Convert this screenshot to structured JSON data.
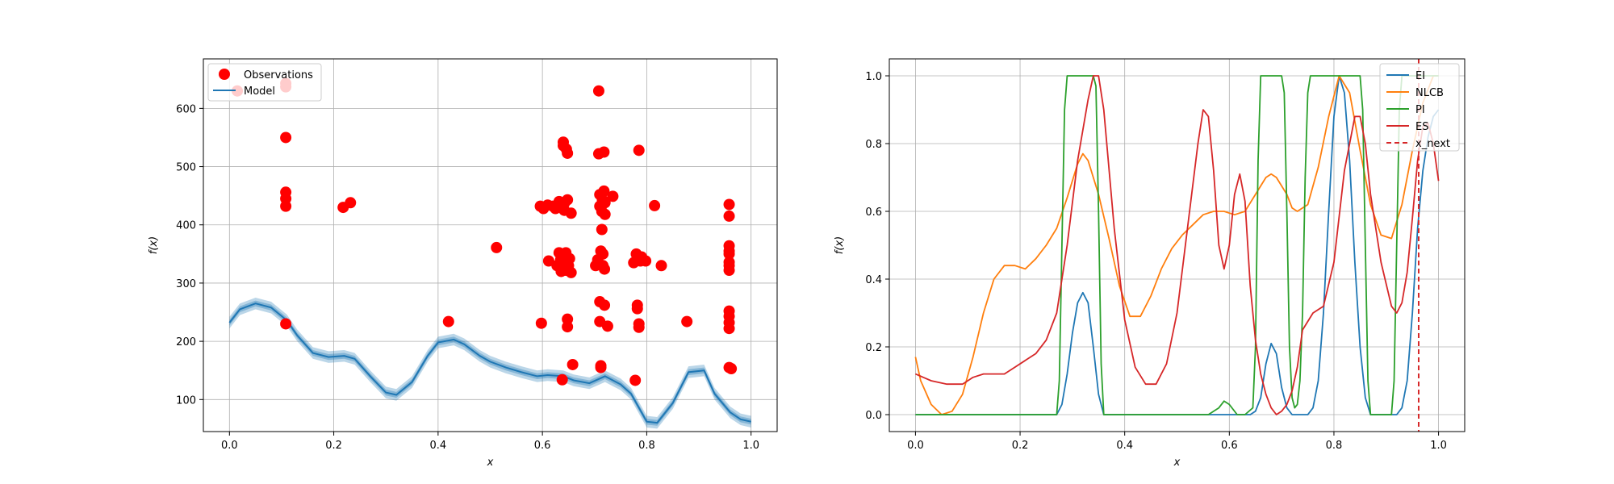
{
  "chart_data": [
    {
      "type": "scatter",
      "xlabel": "x",
      "ylabel": "f(x)",
      "xlim": [
        -0.05,
        1.05
      ],
      "ylim": [
        45,
        685
      ],
      "xticks": [
        0.0,
        0.2,
        0.4,
        0.6,
        0.8,
        1.0
      ],
      "xtick_labels": [
        "0.0",
        "0.2",
        "0.4",
        "0.6",
        "0.8",
        "1.0"
      ],
      "yticks": [
        100,
        200,
        300,
        400,
        500,
        600
      ],
      "ytick_labels": [
        "100",
        "200",
        "300",
        "400",
        "500",
        "600"
      ],
      "grid": true,
      "legend_position": "upper-left",
      "legend": [
        "Observations",
        "Model"
      ],
      "colors": {
        "observations": "#ff0000",
        "model": "#1f77b4",
        "band": "#1f77b4"
      },
      "observations": [
        [
          0.015,
          630
        ],
        [
          0.108,
          643
        ],
        [
          0.108,
          637
        ],
        [
          0.108,
          550
        ],
        [
          0.108,
          456
        ],
        [
          0.108,
          445
        ],
        [
          0.108,
          432
        ],
        [
          0.108,
          230
        ],
        [
          0.218,
          430
        ],
        [
          0.232,
          438
        ],
        [
          0.42,
          234
        ],
        [
          0.512,
          361
        ],
        [
          0.596,
          432
        ],
        [
          0.598,
          231
        ],
        [
          0.602,
          428
        ],
        [
          0.61,
          434
        ],
        [
          0.612,
          338
        ],
        [
          0.62,
          432
        ],
        [
          0.625,
          428
        ],
        [
          0.628,
          330
        ],
        [
          0.632,
          440
        ],
        [
          0.632,
          352
        ],
        [
          0.635,
          340
        ],
        [
          0.636,
          320
        ],
        [
          0.638,
          134
        ],
        [
          0.64,
          542
        ],
        [
          0.64,
          536
        ],
        [
          0.642,
          437
        ],
        [
          0.642,
          425
        ],
        [
          0.643,
          335
        ],
        [
          0.645,
          352
        ],
        [
          0.645,
          322
        ],
        [
          0.646,
          530
        ],
        [
          0.648,
          523
        ],
        [
          0.648,
          443
        ],
        [
          0.648,
          238
        ],
        [
          0.648,
          225
        ],
        [
          0.65,
          330
        ],
        [
          0.652,
          342
        ],
        [
          0.655,
          420
        ],
        [
          0.655,
          318
        ],
        [
          0.658,
          160
        ],
        [
          0.702,
          330
        ],
        [
          0.706,
          340
        ],
        [
          0.708,
          630
        ],
        [
          0.708,
          522
        ],
        [
          0.71,
          452
        ],
        [
          0.71,
          432
        ],
        [
          0.71,
          268
        ],
        [
          0.71,
          234
        ],
        [
          0.712,
          355
        ],
        [
          0.712,
          158
        ],
        [
          0.712,
          155
        ],
        [
          0.714,
          423
        ],
        [
          0.714,
          392
        ],
        [
          0.715,
          443
        ],
        [
          0.716,
          350
        ],
        [
          0.716,
          330
        ],
        [
          0.718,
          458
        ],
        [
          0.718,
          525
        ],
        [
          0.719,
          262
        ],
        [
          0.719,
          324
        ],
        [
          0.72,
          418
        ],
        [
          0.72,
          438
        ],
        [
          0.725,
          226
        ],
        [
          0.735,
          449
        ],
        [
          0.775,
          335
        ],
        [
          0.778,
          133
        ],
        [
          0.78,
          350
        ],
        [
          0.782,
          342
        ],
        [
          0.782,
          262
        ],
        [
          0.782,
          256
        ],
        [
          0.785,
          528
        ],
        [
          0.785,
          230
        ],
        [
          0.785,
          224
        ],
        [
          0.788,
          338
        ],
        [
          0.79,
          345
        ],
        [
          0.798,
          338
        ],
        [
          0.815,
          433
        ],
        [
          0.828,
          330
        ],
        [
          0.877,
          234
        ],
        [
          0.958,
          435
        ],
        [
          0.958,
          415
        ],
        [
          0.958,
          364
        ],
        [
          0.958,
          355
        ],
        [
          0.958,
          350
        ],
        [
          0.958,
          336
        ],
        [
          0.958,
          330
        ],
        [
          0.958,
          322
        ],
        [
          0.958,
          252
        ],
        [
          0.958,
          243
        ],
        [
          0.958,
          232
        ],
        [
          0.958,
          222
        ],
        [
          0.958,
          155
        ],
        [
          0.962,
          153
        ]
      ],
      "model": {
        "x": [
          0.0,
          0.02,
          0.05,
          0.08,
          0.11,
          0.13,
          0.16,
          0.19,
          0.22,
          0.24,
          0.27,
          0.3,
          0.32,
          0.35,
          0.38,
          0.4,
          0.43,
          0.45,
          0.48,
          0.5,
          0.53,
          0.56,
          0.59,
          0.61,
          0.64,
          0.66,
          0.69,
          0.72,
          0.75,
          0.77,
          0.8,
          0.82,
          0.85,
          0.88,
          0.91,
          0.93,
          0.96,
          0.98,
          1.0
        ],
        "y": [
          232,
          255,
          265,
          258,
          236,
          210,
          180,
          173,
          175,
          170,
          140,
          112,
          108,
          130,
          175,
          198,
          203,
          195,
          175,
          165,
          155,
          147,
          140,
          142,
          140,
          133,
          128,
          140,
          126,
          110,
          62,
          60,
          94,
          147,
          150,
          110,
          78,
          66,
          62
        ],
        "band": 10
      }
    },
    {
      "type": "line",
      "xlabel": "x",
      "ylabel": "f(x)",
      "xlim": [
        -0.05,
        1.05
      ],
      "ylim": [
        -0.05,
        1.05
      ],
      "xticks": [
        0.0,
        0.2,
        0.4,
        0.6,
        0.8,
        1.0
      ],
      "xtick_labels": [
        "0.0",
        "0.2",
        "0.4",
        "0.6",
        "0.8",
        "1.0"
      ],
      "yticks": [
        0.0,
        0.2,
        0.4,
        0.6,
        0.8,
        1.0
      ],
      "ytick_labels": [
        "0.0",
        "0.2",
        "0.4",
        "0.6",
        "0.8",
        "1.0"
      ],
      "grid": true,
      "legend_position": "upper-right",
      "x_next": 0.962,
      "series": [
        {
          "name": "EI",
          "color": "#1f77b4",
          "x": [
            0.0,
            0.27,
            0.28,
            0.29,
            0.3,
            0.31,
            0.32,
            0.33,
            0.34,
            0.35,
            0.36,
            0.63,
            0.64,
            0.65,
            0.66,
            0.67,
            0.68,
            0.69,
            0.7,
            0.71,
            0.72,
            0.73,
            0.74,
            0.75,
            0.76,
            0.77,
            0.78,
            0.79,
            0.8,
            0.81,
            0.82,
            0.83,
            0.84,
            0.85,
            0.86,
            0.87,
            0.88,
            0.91,
            0.92,
            0.93,
            0.94,
            0.95,
            0.96,
            0.97,
            0.98,
            0.99,
            1.0
          ],
          "y": [
            0.0,
            0.0,
            0.03,
            0.12,
            0.24,
            0.33,
            0.36,
            0.33,
            0.2,
            0.06,
            0.0,
            0.0,
            0.0,
            0.01,
            0.05,
            0.15,
            0.21,
            0.18,
            0.08,
            0.02,
            0.0,
            0.0,
            0.0,
            0.0,
            0.02,
            0.1,
            0.3,
            0.6,
            0.88,
            1.0,
            0.95,
            0.75,
            0.45,
            0.2,
            0.05,
            0.0,
            0.0,
            0.0,
            0.0,
            0.02,
            0.1,
            0.3,
            0.55,
            0.72,
            0.82,
            0.88,
            0.9
          ]
        },
        {
          "name": "NLCB",
          "color": "#ff7f0e",
          "x": [
            0.0,
            0.01,
            0.03,
            0.05,
            0.07,
            0.09,
            0.11,
            0.13,
            0.15,
            0.17,
            0.19,
            0.21,
            0.23,
            0.25,
            0.27,
            0.29,
            0.31,
            0.32,
            0.33,
            0.35,
            0.37,
            0.39,
            0.41,
            0.43,
            0.45,
            0.47,
            0.49,
            0.51,
            0.53,
            0.55,
            0.57,
            0.59,
            0.61,
            0.63,
            0.65,
            0.67,
            0.68,
            0.69,
            0.71,
            0.72,
            0.73,
            0.75,
            0.77,
            0.79,
            0.81,
            0.83,
            0.85,
            0.87,
            0.89,
            0.91,
            0.93,
            0.95,
            0.97,
            0.99,
            1.0
          ],
          "y": [
            0.17,
            0.1,
            0.03,
            0.0,
            0.01,
            0.06,
            0.17,
            0.3,
            0.4,
            0.44,
            0.44,
            0.43,
            0.46,
            0.5,
            0.55,
            0.64,
            0.74,
            0.77,
            0.75,
            0.65,
            0.52,
            0.38,
            0.29,
            0.29,
            0.35,
            0.43,
            0.49,
            0.53,
            0.56,
            0.59,
            0.6,
            0.6,
            0.59,
            0.6,
            0.65,
            0.7,
            0.71,
            0.7,
            0.65,
            0.61,
            0.6,
            0.62,
            0.73,
            0.88,
            1.0,
            0.95,
            0.78,
            0.62,
            0.53,
            0.52,
            0.62,
            0.78,
            0.92,
            1.0,
            1.0
          ]
        },
        {
          "name": "PI",
          "color": "#2ca02c",
          "x": [
            0.0,
            0.27,
            0.275,
            0.28,
            0.285,
            0.29,
            0.3,
            0.34,
            0.345,
            0.35,
            0.355,
            0.36,
            0.56,
            0.58,
            0.59,
            0.6,
            0.615,
            0.63,
            0.645,
            0.65,
            0.655,
            0.66,
            0.665,
            0.67,
            0.7,
            0.705,
            0.71,
            0.715,
            0.72,
            0.725,
            0.73,
            0.735,
            0.74,
            0.745,
            0.75,
            0.755,
            0.76,
            0.765,
            0.77,
            0.85,
            0.855,
            0.86,
            0.865,
            0.87,
            0.91,
            0.915,
            0.92,
            0.925,
            0.93,
            1.0
          ],
          "y": [
            0.0,
            0.0,
            0.1,
            0.5,
            0.9,
            1.0,
            1.0,
            1.0,
            0.97,
            0.6,
            0.15,
            0.0,
            0.0,
            0.02,
            0.04,
            0.03,
            0.0,
            0.0,
            0.02,
            0.2,
            0.75,
            1.0,
            1.0,
            1.0,
            1.0,
            0.95,
            0.6,
            0.2,
            0.05,
            0.02,
            0.03,
            0.1,
            0.3,
            0.7,
            0.95,
            1.0,
            1.0,
            1.0,
            1.0,
            1.0,
            0.9,
            0.5,
            0.1,
            0.0,
            0.0,
            0.1,
            0.5,
            0.9,
            1.0,
            1.0
          ]
        },
        {
          "name": "ES",
          "color": "#d62728",
          "x": [
            0.0,
            0.03,
            0.06,
            0.09,
            0.11,
            0.13,
            0.15,
            0.17,
            0.19,
            0.21,
            0.23,
            0.25,
            0.27,
            0.29,
            0.31,
            0.33,
            0.34,
            0.35,
            0.36,
            0.38,
            0.4,
            0.42,
            0.44,
            0.46,
            0.48,
            0.5,
            0.52,
            0.54,
            0.55,
            0.56,
            0.57,
            0.58,
            0.59,
            0.6,
            0.61,
            0.62,
            0.63,
            0.64,
            0.65,
            0.66,
            0.67,
            0.68,
            0.69,
            0.7,
            0.71,
            0.72,
            0.73,
            0.74,
            0.76,
            0.78,
            0.8,
            0.82,
            0.84,
            0.85,
            0.86,
            0.87,
            0.89,
            0.91,
            0.92,
            0.93,
            0.94,
            0.95,
            0.96,
            0.97,
            0.98,
            0.99,
            1.0
          ],
          "y": [
            0.12,
            0.1,
            0.09,
            0.09,
            0.11,
            0.12,
            0.12,
            0.12,
            0.14,
            0.16,
            0.18,
            0.22,
            0.3,
            0.5,
            0.75,
            0.93,
            1.0,
            1.0,
            0.9,
            0.55,
            0.28,
            0.14,
            0.09,
            0.09,
            0.15,
            0.3,
            0.55,
            0.8,
            0.9,
            0.88,
            0.72,
            0.5,
            0.43,
            0.5,
            0.65,
            0.71,
            0.63,
            0.38,
            0.22,
            0.12,
            0.06,
            0.02,
            0.0,
            0.01,
            0.03,
            0.07,
            0.14,
            0.25,
            0.3,
            0.32,
            0.45,
            0.72,
            0.88,
            0.88,
            0.8,
            0.65,
            0.45,
            0.32,
            0.3,
            0.33,
            0.42,
            0.58,
            0.75,
            0.85,
            0.86,
            0.8,
            0.69
          ]
        }
      ],
      "legend": [
        "EI",
        "NLCB",
        "PI",
        "ES",
        "x_next"
      ],
      "x_next_color": "#d62728"
    }
  ]
}
